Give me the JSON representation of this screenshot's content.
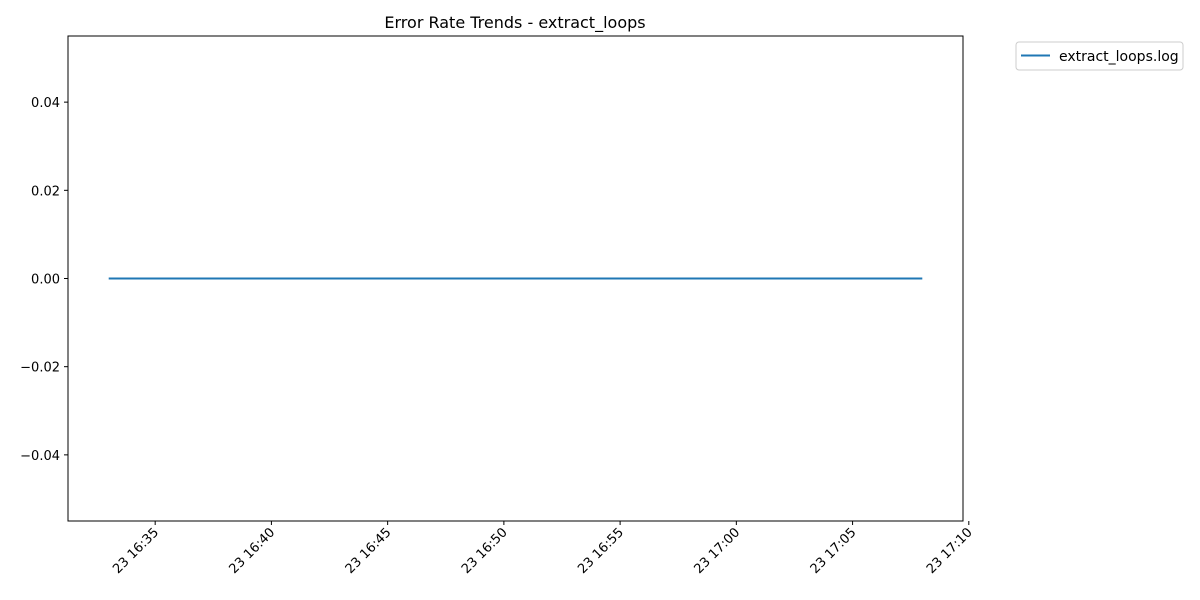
{
  "chart_data": {
    "type": "line",
    "title": "Error Rate Trends - extract_loops",
    "xlabel": "",
    "ylabel": "",
    "x_type": "datetime",
    "xlim": [
      "23 16:31:15",
      "23 17:09:45"
    ],
    "ylim": [
      -0.055,
      0.055
    ],
    "x_ticks": [
      "23 16:35",
      "23 16:40",
      "23 16:45",
      "23 16:50",
      "23 16:55",
      "23 17:00",
      "23 17:05",
      "23 17:10"
    ],
    "y_ticks": [
      "0.04",
      "0.02",
      "0.00",
      "−0.02",
      "−0.04"
    ],
    "grid": false,
    "legend_position": "outside-top-right",
    "series": [
      {
        "name": "extract_loops.log",
        "color": "#1f77b4",
        "x": [
          "23 16:33:00",
          "23 17:08:00"
        ],
        "y": [
          0.0,
          0.0
        ]
      }
    ]
  }
}
